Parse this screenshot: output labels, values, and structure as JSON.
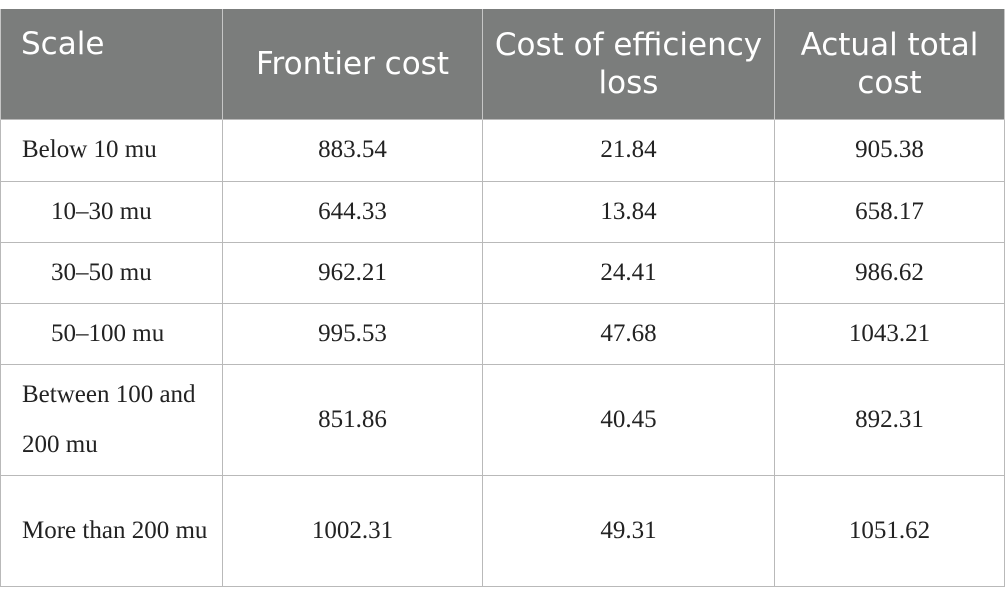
{
  "table": {
    "headers": [
      "Scale",
      "Frontier cost",
      "Cost of efficiency loss",
      "Actual total cost"
    ],
    "rows": [
      {
        "scale": "Below 10 mu",
        "frontier_cost": "883.54",
        "efficiency_loss": "21.84",
        "total_cost": "905.38"
      },
      {
        "scale": "10–30 mu",
        "frontier_cost": "644.33",
        "efficiency_loss": "13.84",
        "total_cost": "658.17"
      },
      {
        "scale": "30–50 mu",
        "frontier_cost": "962.21",
        "efficiency_loss": "24.41",
        "total_cost": "986.62"
      },
      {
        "scale": "50–100 mu",
        "frontier_cost": "995.53",
        "efficiency_loss": "47.68",
        "total_cost": "1043.21"
      },
      {
        "scale": "Between 100 and 200 mu",
        "frontier_cost": "851.86",
        "efficiency_loss": "40.45",
        "total_cost": "892.31"
      },
      {
        "scale": "More than 200 mu",
        "frontier_cost": "1002.31",
        "efficiency_loss": "49.31",
        "total_cost": "1051.62"
      }
    ]
  }
}
